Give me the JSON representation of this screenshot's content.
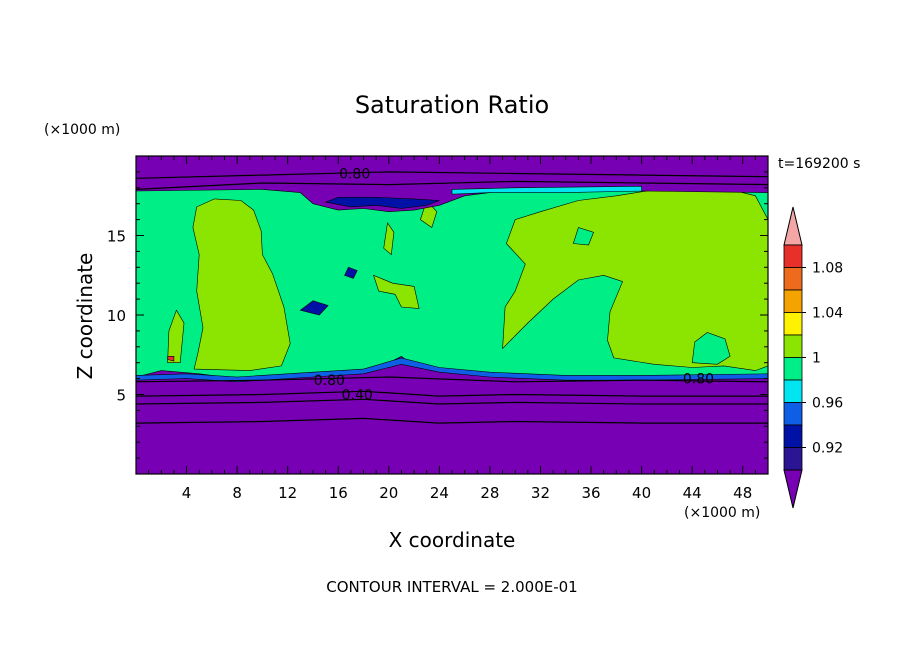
{
  "chart_data": {
    "type": "contour",
    "title": "Saturation Ratio",
    "xlabel": "X coordinate",
    "ylabel": "Z coordinate",
    "x_unit": "(×1000 m)",
    "y_unit": "(×1000 m)",
    "time_label": "t=169200 s",
    "footer": "CONTOUR INTERVAL = 2.000E-01",
    "xlim": [
      0,
      50
    ],
    "ylim": [
      0,
      20
    ],
    "x_ticks": [
      4,
      8,
      12,
      16,
      20,
      24,
      28,
      32,
      36,
      40,
      44,
      48
    ],
    "x_tick_labels": [
      "4",
      "8",
      "12",
      "16",
      "20",
      "24",
      "28",
      "32",
      "36",
      "40",
      "44",
      "48"
    ],
    "y_ticks": [
      5,
      10,
      15
    ],
    "y_tick_labels": [
      "5",
      "10",
      "15"
    ],
    "contour_labels": [
      {
        "text": "0.80",
        "x": 17.3,
        "y": 18.6
      },
      {
        "text": "0.80",
        "x": 15.3,
        "y": 5.6
      },
      {
        "text": "0.40",
        "x": 17.5,
        "y": 4.7
      },
      {
        "text": "0.80",
        "x": 44.5,
        "y": 5.7
      }
    ],
    "colorbar": {
      "colors": [
        "#f4a6a6",
        "#e8302a",
        "#ee6a1c",
        "#f5a300",
        "#fff200",
        "#8be500",
        "#00ee86",
        "#00e5f0",
        "#0f5fe6",
        "#0012a5",
        "#2b1593",
        "#7800b4"
      ],
      "labels": [
        "1.08",
        "1.04",
        "1",
        "0.96",
        "0.92"
      ]
    },
    "fields": {
      "palette": {
        "purple": "#7800b4",
        "green": "#00ee86",
        "lime": "#8be500",
        "cyan": "#00e5f0",
        "blue": "#0f5fe6",
        "navy": "#0012a5",
        "red": "#e8302a"
      },
      "regions": [
        {
          "level": "purple",
          "points": [
            [
              0,
              0
            ],
            [
              50,
              0
            ],
            [
              50,
              20
            ],
            [
              0,
              20
            ]
          ]
        },
        {
          "level": "green",
          "points": [
            [
              0,
              6.1
            ],
            [
              2,
              6.5
            ],
            [
              5,
              6.3
            ],
            [
              8,
              6.0
            ],
            [
              12,
              6.2
            ],
            [
              14,
              6.4
            ],
            [
              16,
              6.3
            ],
            [
              18,
              6.5
            ],
            [
              20,
              7.0
            ],
            [
              21,
              7.4
            ],
            [
              22,
              6.8
            ],
            [
              24,
              6.6
            ],
            [
              26,
              6.5
            ],
            [
              28,
              6.2
            ],
            [
              30,
              6.3
            ],
            [
              32,
              6.1
            ],
            [
              36,
              6.1
            ],
            [
              40,
              6.0
            ],
            [
              44,
              6.2
            ],
            [
              50,
              6.2
            ],
            [
              50,
              18.0
            ],
            [
              46,
              18.1
            ],
            [
              40,
              18.0
            ],
            [
              30,
              18.1
            ],
            [
              25,
              18.0
            ],
            [
              20,
              17.9
            ],
            [
              16,
              18.0
            ],
            [
              10,
              18.1
            ],
            [
              4,
              18.0
            ],
            [
              0,
              17.9
            ]
          ]
        },
        {
          "level": "lime",
          "points": [
            [
              4.6,
              6.6
            ],
            [
              9,
              6.5
            ],
            [
              11.5,
              6.8
            ],
            [
              12.2,
              8.2
            ],
            [
              11.7,
              10.5
            ],
            [
              10.8,
              12.6
            ],
            [
              10.0,
              13.8
            ],
            [
              9.9,
              15.3
            ],
            [
              9.3,
              16.6
            ],
            [
              8.3,
              17.2
            ],
            [
              6.2,
              17.3
            ],
            [
              4.8,
              16.8
            ],
            [
              4.5,
              15.5
            ],
            [
              5.0,
              13.8
            ],
            [
              4.8,
              11.5
            ],
            [
              5.3,
              9.2
            ],
            [
              4.9,
              7.6
            ]
          ]
        },
        {
          "level": "lime",
          "points": [
            [
              29.0,
              7.9
            ],
            [
              31.0,
              9.5
            ],
            [
              33.0,
              11.0
            ],
            [
              35.0,
              12.2
            ],
            [
              37.0,
              12.5
            ],
            [
              38.5,
              12.1
            ],
            [
              37.5,
              10.2
            ],
            [
              37.3,
              8.4
            ],
            [
              37.8,
              7.3
            ],
            [
              41,
              6.9
            ],
            [
              44,
              6.7
            ],
            [
              46.5,
              6.8
            ],
            [
              49,
              6.5
            ],
            [
              50,
              6.8
            ],
            [
              50,
              16.0
            ],
            [
              49.0,
              17.5
            ],
            [
              46.5,
              18.0
            ],
            [
              42,
              18.0
            ],
            [
              38,
              17.5
            ],
            [
              35,
              17.2
            ],
            [
              32,
              16.5
            ],
            [
              30,
              16.0
            ],
            [
              29.3,
              14.5
            ],
            [
              30.8,
              13.2
            ],
            [
              30.0,
              11.5
            ],
            [
              29.2,
              10.5
            ]
          ]
        },
        {
          "level": "green",
          "points": [
            [
              44.0,
              7.0
            ],
            [
              46,
              6.9
            ],
            [
              47,
              7.4
            ],
            [
              46.6,
              8.5
            ],
            [
              45.2,
              8.9
            ],
            [
              44.2,
              8.3
            ]
          ]
        },
        {
          "level": "green",
          "points": [
            [
              34.6,
              14.5
            ],
            [
              35.8,
              14.4
            ],
            [
              36.2,
              15.2
            ],
            [
              35.0,
              15.5
            ]
          ]
        },
        {
          "level": "lime",
          "points": [
            [
              2.5,
              7.0
            ],
            [
              3.5,
              7.0
            ],
            [
              3.8,
              9.5
            ],
            [
              3.2,
              10.3
            ],
            [
              2.6,
              9.0
            ]
          ]
        },
        {
          "level": "lime",
          "points": [
            [
              18.8,
              12.5
            ],
            [
              20.3,
              12.0
            ],
            [
              22.0,
              11.8
            ],
            [
              22.4,
              10.4
            ],
            [
              21.0,
              10.5
            ],
            [
              20.5,
              11.3
            ],
            [
              19.2,
              11.5
            ]
          ]
        },
        {
          "level": "lime",
          "points": [
            [
              19.6,
              14.2
            ],
            [
              20.2,
              13.8
            ],
            [
              20.4,
              15.2
            ],
            [
              19.9,
              15.8
            ]
          ]
        },
        {
          "level": "lime",
          "points": [
            [
              22.5,
              16.0
            ],
            [
              23.4,
              15.5
            ],
            [
              23.8,
              16.5
            ],
            [
              23.0,
              17.2
            ]
          ]
        },
        {
          "level": "blue",
          "points": [
            [
              0,
              5.9
            ],
            [
              4,
              6.0
            ],
            [
              8,
              5.8
            ],
            [
              14,
              6.1
            ],
            [
              18,
              6.3
            ],
            [
              21,
              6.9
            ],
            [
              24,
              6.4
            ],
            [
              28,
              6.1
            ],
            [
              34,
              5.9
            ],
            [
              40,
              5.9
            ],
            [
              50,
              6.0
            ],
            [
              50,
              6.3
            ],
            [
              40,
              6.2
            ],
            [
              34,
              6.2
            ],
            [
              28,
              6.4
            ],
            [
              24,
              6.7
            ],
            [
              21,
              7.3
            ],
            [
              18,
              6.6
            ],
            [
              14,
              6.4
            ],
            [
              8,
              6.1
            ],
            [
              4,
              6.3
            ],
            [
              0,
              6.2
            ]
          ]
        },
        {
          "level": "navy",
          "points": [
            [
              13.0,
              10.3
            ],
            [
              14.5,
              10.0
            ],
            [
              15.2,
              10.6
            ],
            [
              14.0,
              10.9
            ]
          ]
        },
        {
          "level": "navy",
          "points": [
            [
              16.5,
              12.5
            ],
            [
              17.2,
              12.3
            ],
            [
              17.5,
              12.8
            ],
            [
              16.8,
              13.0
            ]
          ]
        },
        {
          "level": "purple",
          "points": [
            [
              0,
              17.8
            ],
            [
              10,
              17.9
            ],
            [
              13,
              17.7
            ],
            [
              14,
              17.0
            ],
            [
              16,
              16.6
            ],
            [
              18,
              16.7
            ],
            [
              20,
              16.5
            ],
            [
              22,
              16.6
            ],
            [
              24,
              16.9
            ],
            [
              26,
              17.5
            ],
            [
              30,
              17.9
            ],
            [
              40,
              17.8
            ],
            [
              50,
              17.7
            ],
            [
              50,
              20
            ],
            [
              0,
              20
            ]
          ]
        },
        {
          "level": "navy",
          "points": [
            [
              15,
              17.1
            ],
            [
              17,
              16.8
            ],
            [
              19,
              16.9
            ],
            [
              21,
              16.7
            ],
            [
              23,
              16.9
            ],
            [
              24,
              17.2
            ],
            [
              22,
              17.3
            ],
            [
              19,
              17.4
            ],
            [
              16,
              17.4
            ]
          ]
        },
        {
          "level": "cyan",
          "points": [
            [
              25,
              17.6
            ],
            [
              28,
              17.7
            ],
            [
              34,
              17.7
            ],
            [
              40,
              17.8
            ],
            [
              40,
              18.1
            ],
            [
              30,
              18.0
            ],
            [
              25,
              17.9
            ]
          ]
        },
        {
          "level": "red",
          "points": [
            [
              2.5,
              7.2
            ],
            [
              3.0,
              7.1
            ],
            [
              3.0,
              7.4
            ],
            [
              2.5,
              7.4
            ]
          ]
        }
      ],
      "contour_lines": [
        [
          [
            0,
            17.9
          ],
          [
            10,
            18.3
          ],
          [
            20,
            18.2
          ],
          [
            30,
            18.4
          ],
          [
            40,
            18.3
          ],
          [
            50,
            18.2
          ]
        ],
        [
          [
            0,
            18.6
          ],
          [
            10,
            18.8
          ],
          [
            20,
            19.0
          ],
          [
            30,
            18.9
          ],
          [
            40,
            18.8
          ],
          [
            50,
            18.7
          ]
        ],
        [
          [
            0,
            5.8
          ],
          [
            10,
            5.9
          ],
          [
            20,
            6.1
          ],
          [
            30,
            5.8
          ],
          [
            40,
            5.9
          ],
          [
            50,
            5.8
          ]
        ],
        [
          [
            0,
            4.9
          ],
          [
            10,
            5.0
          ],
          [
            18,
            5.2
          ],
          [
            24,
            4.9
          ],
          [
            30,
            5.0
          ],
          [
            40,
            4.9
          ],
          [
            50,
            4.9
          ]
        ],
        [
          [
            0,
            4.4
          ],
          [
            10,
            4.5
          ],
          [
            18,
            4.7
          ],
          [
            24,
            4.4
          ],
          [
            30,
            4.5
          ],
          [
            40,
            4.4
          ],
          [
            50,
            4.4
          ]
        ],
        [
          [
            0,
            3.2
          ],
          [
            10,
            3.3
          ],
          [
            18,
            3.5
          ],
          [
            24,
            3.2
          ],
          [
            30,
            3.3
          ],
          [
            40,
            3.2
          ],
          [
            50,
            3.2
          ]
        ]
      ]
    }
  }
}
